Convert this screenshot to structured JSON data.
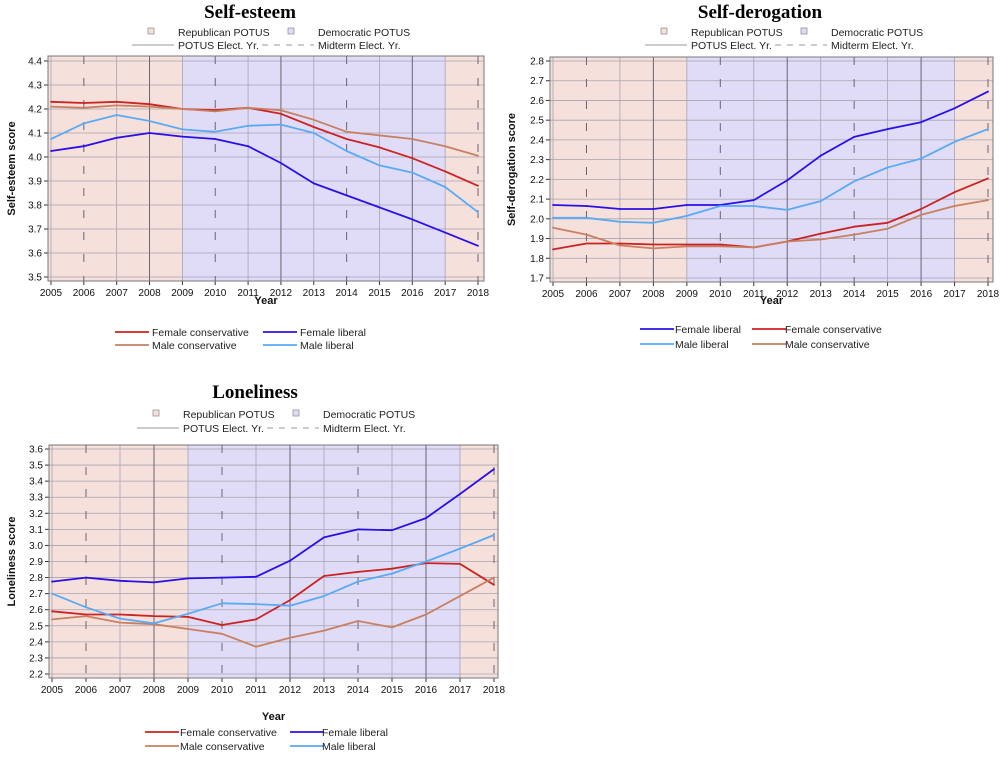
{
  "colors": {
    "republican_shade": "#f5e0dc",
    "democratic_shade": "#e0dcf8",
    "female_conservative": "#cc2222",
    "male_conservative": "#c98060",
    "female_liberal": "#2a10e6",
    "male_liberal": "#5aaaf5"
  },
  "shading_legend": {
    "republican": "Republican POTUS",
    "democratic": "Democratic POTUS",
    "potus_election": "POTUS Elect. Yr.",
    "midterm_election": "Midterm Elect. Yr."
  },
  "periods": [
    {
      "party": "republican",
      "from": 2005,
      "to": 2009
    },
    {
      "party": "democratic",
      "from": 2009,
      "to": 2017
    },
    {
      "party": "republican",
      "from": 2017,
      "to": 2018
    }
  ],
  "potus_election_years": [
    2008,
    2012,
    2016
  ],
  "midterm_election_years": [
    2006,
    2010,
    2014,
    2018
  ],
  "chart_data": [
    {
      "type": "line",
      "title": "Self-esteem",
      "xlabel": "Year",
      "ylabel": "Self-esteem score",
      "x": [
        2005,
        2006,
        2007,
        2008,
        2009,
        2010,
        2011,
        2012,
        2013,
        2014,
        2015,
        2016,
        2017,
        2018
      ],
      "ylim": [
        3.5,
        4.4
      ],
      "yticks": [
        "3.5",
        "3.6",
        "3.7",
        "3.8",
        "3.9",
        "4.0",
        "4.1",
        "4.2",
        "4.3",
        "4.4"
      ],
      "grid": true,
      "legend_placement": "bottom",
      "series": [
        {
          "name": "Female conservative",
          "color_key": "female_conservative",
          "values": [
            4.23,
            4.225,
            4.23,
            4.22,
            4.2,
            4.195,
            4.205,
            4.18,
            4.125,
            4.075,
            4.04,
            3.995,
            3.94,
            3.88
          ]
        },
        {
          "name": "Female liberal",
          "color_key": "female_liberal",
          "values": [
            4.025,
            4.045,
            4.08,
            4.1,
            4.085,
            4.075,
            4.045,
            3.975,
            3.89,
            3.84,
            3.79,
            3.74,
            3.685,
            3.63
          ]
        },
        {
          "name": "Male conservative",
          "color_key": "male_conservative",
          "values": [
            4.21,
            4.205,
            4.215,
            4.21,
            4.2,
            4.19,
            4.205,
            4.195,
            4.155,
            4.105,
            4.09,
            4.075,
            4.045,
            4.005
          ]
        },
        {
          "name": "Male liberal",
          "color_key": "male_liberal",
          "values": [
            4.075,
            4.14,
            4.175,
            4.15,
            4.115,
            4.105,
            4.13,
            4.135,
            4.1,
            4.025,
            3.965,
            3.935,
            3.875,
            3.77
          ]
        }
      ]
    },
    {
      "type": "line",
      "title": "Self-derogation",
      "xlabel": "Year",
      "ylabel": "Self-derogation score",
      "x": [
        2005,
        2006,
        2007,
        2008,
        2009,
        2010,
        2011,
        2012,
        2013,
        2014,
        2015,
        2016,
        2017,
        2018
      ],
      "ylim": [
        1.7,
        2.8
      ],
      "yticks": [
        "1.7",
        "1.8",
        "1.9",
        "2.0",
        "2.1",
        "2.2",
        "2.3",
        "2.4",
        "2.5",
        "2.6",
        "2.7",
        "2.8"
      ],
      "grid": true,
      "legend_placement": "bottom",
      "series": [
        {
          "name": "Female liberal",
          "color_key": "female_liberal",
          "values": [
            2.07,
            2.065,
            2.05,
            2.05,
            2.07,
            2.07,
            2.095,
            2.195,
            2.32,
            2.415,
            2.455,
            2.49,
            2.56,
            2.645
          ]
        },
        {
          "name": "Female conservative",
          "color_key": "female_conservative",
          "values": [
            1.845,
            1.875,
            1.875,
            1.87,
            1.87,
            1.87,
            1.855,
            1.885,
            1.925,
            1.96,
            1.98,
            2.05,
            2.135,
            2.205
          ]
        },
        {
          "name": "Male liberal",
          "color_key": "male_liberal",
          "values": [
            2.005,
            2.005,
            1.985,
            1.98,
            2.015,
            2.065,
            2.065,
            2.045,
            2.09,
            2.19,
            2.26,
            2.305,
            2.39,
            2.455
          ]
        },
        {
          "name": "Male conservative",
          "color_key": "male_conservative",
          "values": [
            1.955,
            1.92,
            1.865,
            1.85,
            1.86,
            1.86,
            1.855,
            1.885,
            1.895,
            1.92,
            1.95,
            2.02,
            2.065,
            2.095
          ]
        }
      ]
    },
    {
      "type": "line",
      "title": "Loneliness",
      "xlabel": "Year",
      "ylabel": "Loneliness score",
      "x": [
        2005,
        2006,
        2007,
        2008,
        2009,
        2010,
        2011,
        2012,
        2013,
        2014,
        2015,
        2016,
        2017,
        2018
      ],
      "ylim": [
        2.2,
        3.6
      ],
      "yticks": [
        "2.2",
        "2.3",
        "2.4",
        "2.5",
        "2.6",
        "2.7",
        "2.8",
        "2.9",
        "3.0",
        "3.1",
        "3.2",
        "3.3",
        "3.4",
        "3.5",
        "3.6"
      ],
      "grid": true,
      "legend_placement": "bottom",
      "series": [
        {
          "name": "Female conservative",
          "color_key": "female_conservative",
          "values": [
            2.59,
            2.57,
            2.57,
            2.56,
            2.555,
            2.505,
            2.54,
            2.66,
            2.81,
            2.835,
            2.855,
            2.89,
            2.885,
            2.755
          ]
        },
        {
          "name": "Female liberal",
          "color_key": "female_liberal",
          "values": [
            2.775,
            2.8,
            2.78,
            2.77,
            2.795,
            2.8,
            2.805,
            2.905,
            3.05,
            3.1,
            3.095,
            3.17,
            3.32,
            3.475
          ]
        },
        {
          "name": "Male conservative",
          "color_key": "male_conservative",
          "values": [
            2.54,
            2.56,
            2.52,
            2.51,
            2.48,
            2.45,
            2.37,
            2.425,
            2.47,
            2.53,
            2.49,
            2.57,
            2.685,
            2.8
          ]
        },
        {
          "name": "Male liberal",
          "color_key": "male_liberal",
          "values": [
            2.7,
            2.615,
            2.545,
            2.515,
            2.575,
            2.64,
            2.635,
            2.625,
            2.685,
            2.775,
            2.825,
            2.9,
            2.98,
            3.065
          ]
        }
      ]
    }
  ]
}
